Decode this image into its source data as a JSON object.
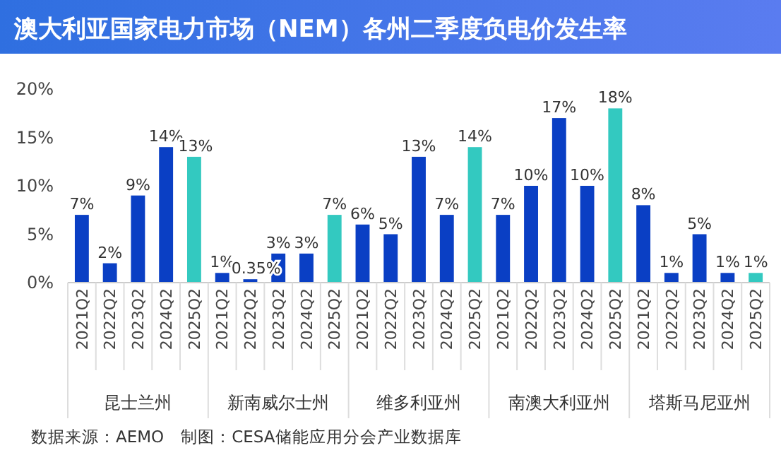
{
  "chart_data": {
    "type": "bar",
    "title": "澳大利亚国家电力市场（NEM）各州二季度负电价发生率",
    "categories": [
      "2021Q2",
      "2022Q2",
      "2023Q2",
      "2024Q2",
      "2025Q2",
      "2021Q2",
      "2022Q2",
      "2023Q2",
      "2024Q2",
      "2025Q2",
      "2021Q2",
      "2022Q2",
      "2023Q2",
      "2024Q2",
      "2025Q2",
      "2021Q2",
      "2022Q2",
      "2023Q2",
      "2024Q2",
      "2025Q2",
      "2021Q2",
      "2022Q2",
      "2023Q2",
      "2024Q2",
      "2025Q2"
    ],
    "values": [
      7,
      2,
      9,
      14,
      13,
      1,
      0.35,
      3,
      3,
      7,
      6,
      5,
      13,
      7,
      14,
      7,
      10,
      17,
      10,
      18,
      8,
      1,
      5,
      1,
      1
    ],
    "value_labels": [
      "7%",
      "2%",
      "9%",
      "14%",
      "13%",
      "1%",
      "0.35%",
      "3%",
      "3%",
      "7%",
      "6%",
      "5%",
      "13%",
      "7%",
      "14%",
      "7%",
      "10%",
      "17%",
      "10%",
      "18%",
      "8%",
      "1%",
      "5%",
      "1%",
      "1%"
    ],
    "colors": [
      "#0a3fc4",
      "#0a3fc4",
      "#0a3fc4",
      "#0a3fc4",
      "#33c9c0",
      "#0a3fc4",
      "#0a3fc4",
      "#0a3fc4",
      "#0a3fc4",
      "#33c9c0",
      "#0a3fc4",
      "#0a3fc4",
      "#0a3fc4",
      "#0a3fc4",
      "#33c9c0",
      "#0a3fc4",
      "#0a3fc4",
      "#0a3fc4",
      "#0a3fc4",
      "#33c9c0",
      "#0a3fc4",
      "#0a3fc4",
      "#0a3fc4",
      "#0a3fc4",
      "#33c9c0"
    ],
    "ylim": [
      0,
      20
    ],
    "yticks": [
      {
        "value": 0,
        "label": "0%"
      },
      {
        "value": 5,
        "label": "5%"
      },
      {
        "value": 10,
        "label": "10%"
      },
      {
        "value": 15,
        "label": "15%"
      },
      {
        "value": 20,
        "label": "20%"
      }
    ],
    "grid": false,
    "annotations": [
      "昆士兰州",
      "新南威尔士州",
      "维多利亚州",
      "南澳大利亚州",
      "塔斯马尼亚州",
      "数据来源：AEMO　制图：CESA储能应用分会产业数据库"
    ]
  }
}
